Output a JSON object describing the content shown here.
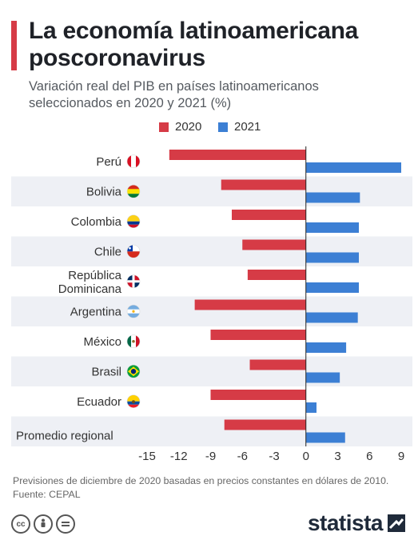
{
  "header": {
    "title": "La economía latinoamericana poscoronavirus",
    "subtitle": "Variación real del PIB en países latinoamericanos seleccionados en 2020 y 2021 (%)"
  },
  "legend": {
    "items": [
      "2020",
      "2021"
    ]
  },
  "colors": {
    "accent": "#d63b46",
    "series_2020": "#d63b46",
    "series_2021": "#3c7fd4",
    "band": "#eef0f5"
  },
  "chart_data": {
    "type": "bar",
    "orientation": "horizontal",
    "categories": [
      "Perú",
      "Bolivia",
      "Colombia",
      "Chile",
      "República Dominicana",
      "Argentina",
      "México",
      "Brasil",
      "Ecuador",
      "Promedio regional"
    ],
    "series": [
      {
        "name": "2020",
        "values": [
          -12.9,
          -8.0,
          -7.0,
          -6.0,
          -5.5,
          -10.5,
          -9.0,
          -5.3,
          -9.0,
          -7.7
        ]
      },
      {
        "name": "2021",
        "values": [
          9.0,
          5.1,
          5.0,
          5.0,
          5.0,
          4.9,
          3.8,
          3.2,
          1.0,
          3.7
        ]
      }
    ],
    "xlim": [
      -15,
      9
    ],
    "xticks": [
      -15,
      -12,
      -9,
      -6,
      -3,
      0,
      3,
      6,
      9
    ],
    "grid": false,
    "legend_position": "top-center",
    "flags": [
      "peru",
      "bolivia",
      "colombia",
      "chile",
      "dominican-republic",
      "argentina",
      "mexico",
      "brazil",
      "ecuador",
      null
    ]
  },
  "footer": {
    "note": "Previsiones de diciembre de 2020 basadas en precios constantes en dólares de 2010.",
    "source": "Fuente: CEPAL",
    "license_icons": [
      "cc-icon",
      "by-icon",
      "nd-icon"
    ],
    "brand": "statista"
  }
}
